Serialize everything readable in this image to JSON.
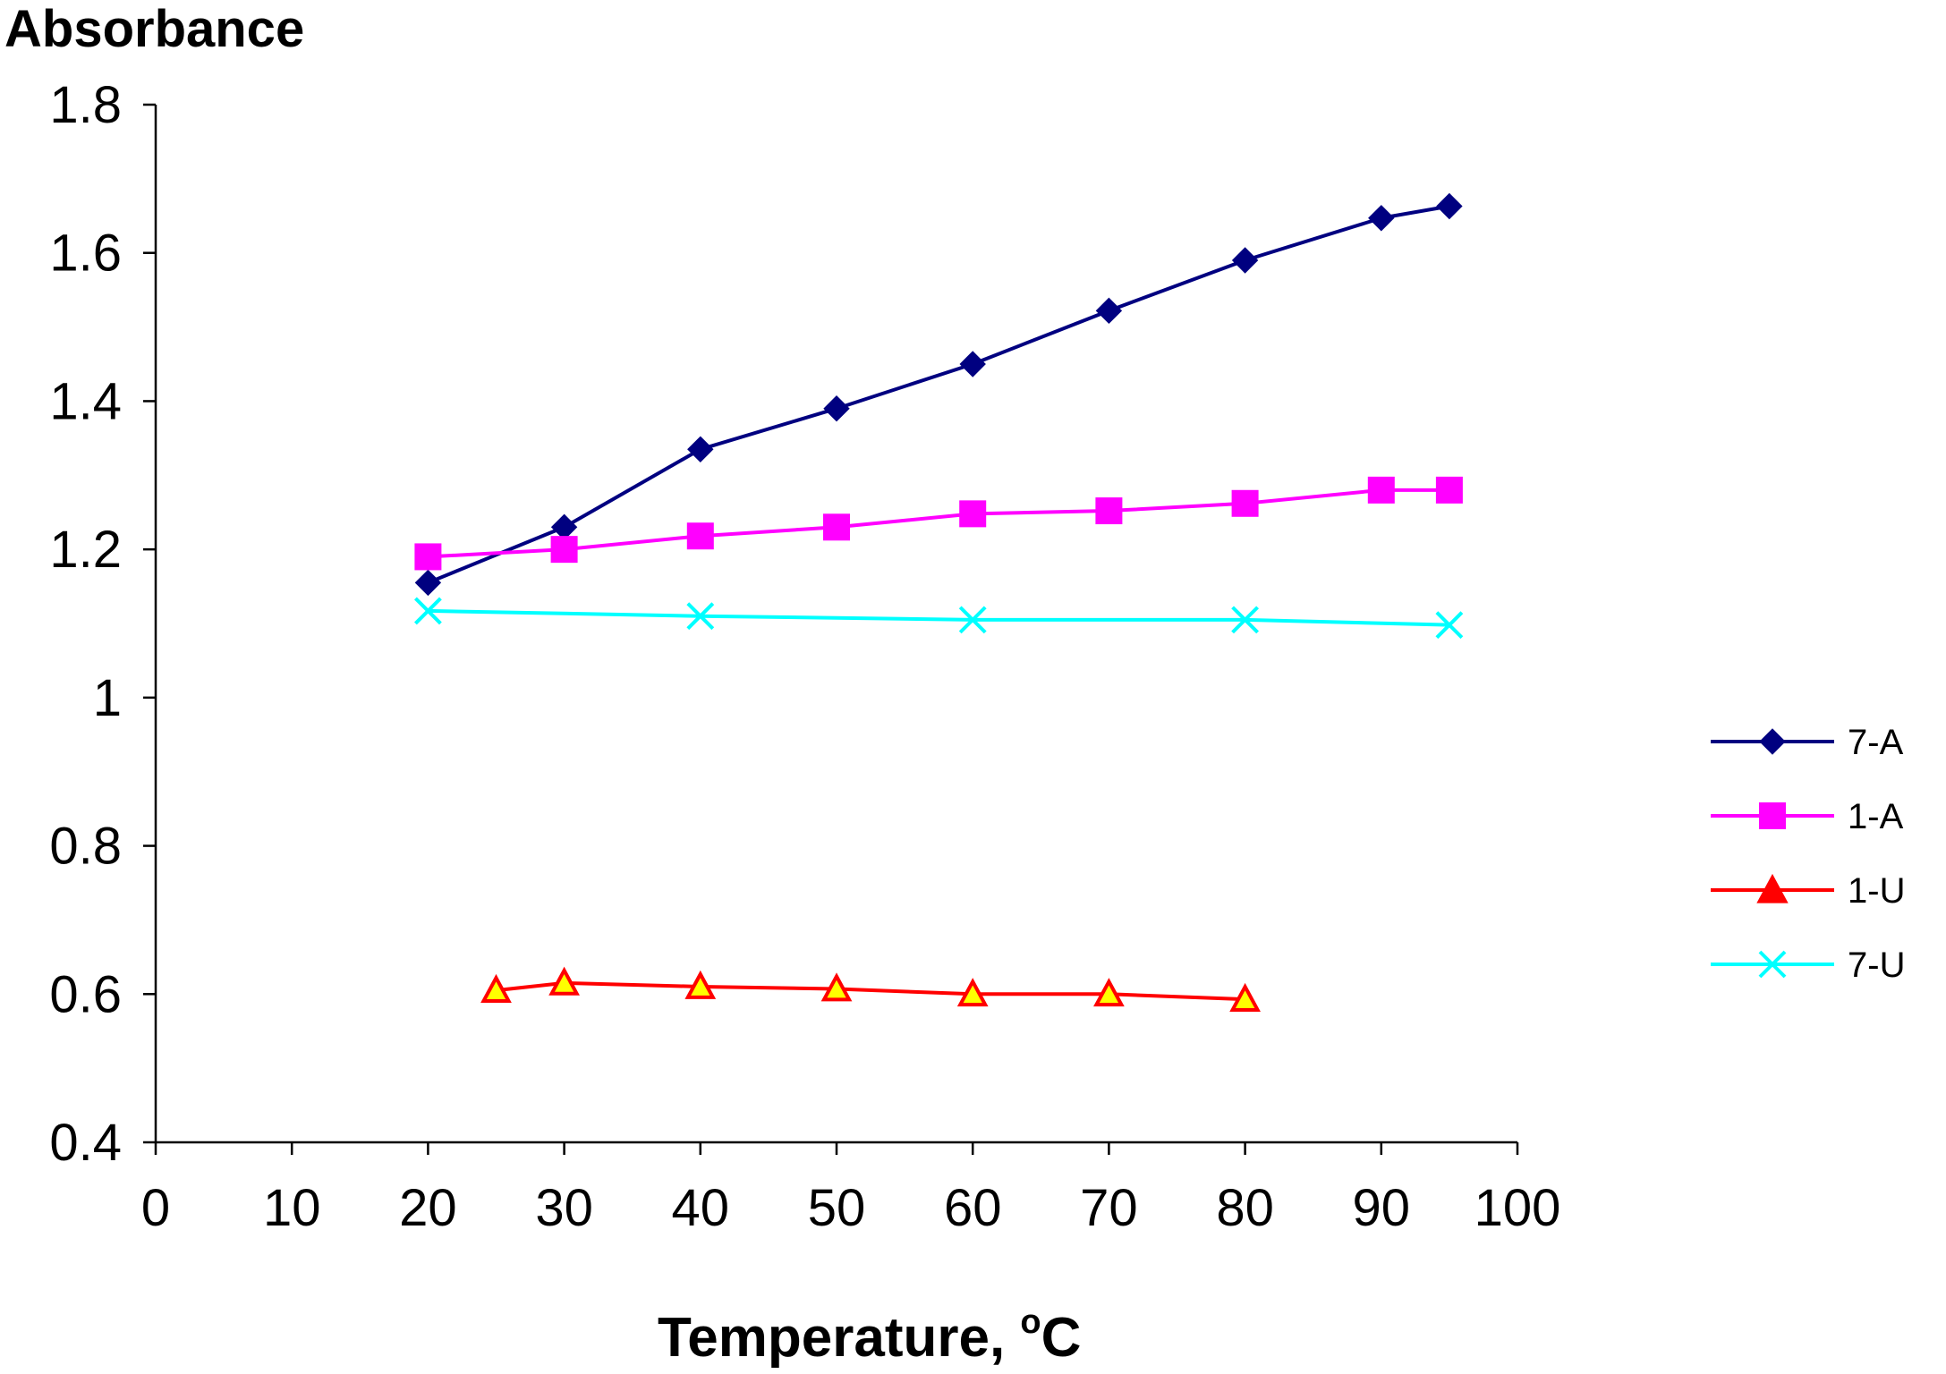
{
  "chart_data": {
    "type": "line",
    "title": "",
    "ylabel": "Absorbance",
    "xlabel": "Temperature, °C",
    "xlabel_main": "Temperature, ",
    "xlabel_sup": "o",
    "xlabel_unit": "C",
    "xlim": [
      0,
      100
    ],
    "ylim": [
      0.4,
      1.8
    ],
    "xticks": [
      "0",
      "10",
      "20",
      "30",
      "40",
      "50",
      "60",
      "70",
      "80",
      "90",
      "100"
    ],
    "yticks": [
      "0.4",
      "0.6",
      "0.8",
      "1",
      "1.2",
      "1.4",
      "1.6",
      "1.8"
    ],
    "grid": false,
    "legend_position": "right",
    "series": [
      {
        "name": "7-A",
        "color": "#000080",
        "marker": "diamond",
        "x": [
          20,
          30,
          40,
          50,
          60,
          70,
          80,
          90,
          95
        ],
        "y": [
          1.155,
          1.23,
          1.335,
          1.39,
          1.45,
          1.522,
          1.59,
          1.647,
          1.663
        ]
      },
      {
        "name": "1-A",
        "color": "#FF00FF",
        "marker": "square",
        "x": [
          20,
          30,
          40,
          50,
          60,
          70,
          80,
          90,
          95
        ],
        "y": [
          1.19,
          1.2,
          1.218,
          1.23,
          1.248,
          1.252,
          1.262,
          1.28,
          1.28
        ]
      },
      {
        "name": "1-U",
        "color": "#FF0000",
        "marker": "triangle",
        "x": [
          25,
          30,
          40,
          50,
          60,
          70,
          80
        ],
        "y": [
          0.605,
          0.615,
          0.61,
          0.607,
          0.6,
          0.6,
          0.593
        ]
      },
      {
        "name": "7-U",
        "color": "#00FFFF",
        "marker": "x",
        "x": [
          20,
          40,
          60,
          80,
          95
        ],
        "y": [
          1.117,
          1.11,
          1.105,
          1.105,
          1.098
        ]
      }
    ]
  }
}
